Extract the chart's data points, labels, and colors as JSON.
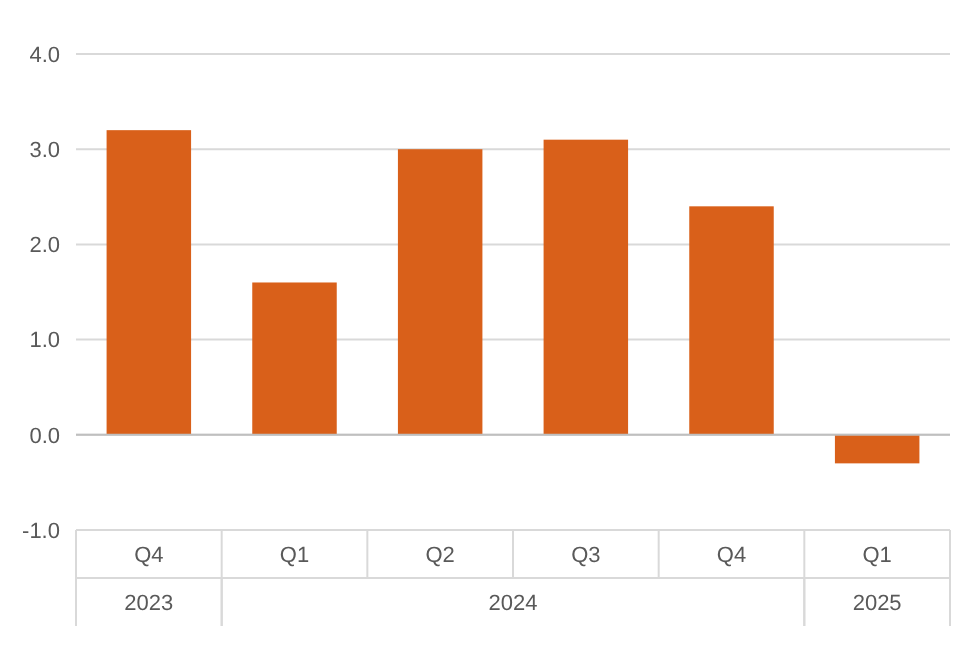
{
  "chart_data": {
    "type": "bar",
    "categories": [
      "Q4",
      "Q1",
      "Q2",
      "Q3",
      "Q4",
      "Q1"
    ],
    "values": [
      3.2,
      1.6,
      3.0,
      3.1,
      2.4,
      -0.3
    ],
    "color": "#d9601a",
    "ylim": [
      -1,
      4
    ],
    "yticks": [
      {
        "value": -1,
        "label": "-1.0"
      },
      {
        "value": 0,
        "label": "0.0"
      },
      {
        "value": 1,
        "label": "1.0"
      },
      {
        "value": 2,
        "label": "2.0"
      },
      {
        "value": 3,
        "label": "3.0"
      },
      {
        "value": 4,
        "label": "4.0"
      }
    ],
    "grid": "y",
    "annotations": [
      "2023",
      "2024",
      "2025"
    ]
  }
}
